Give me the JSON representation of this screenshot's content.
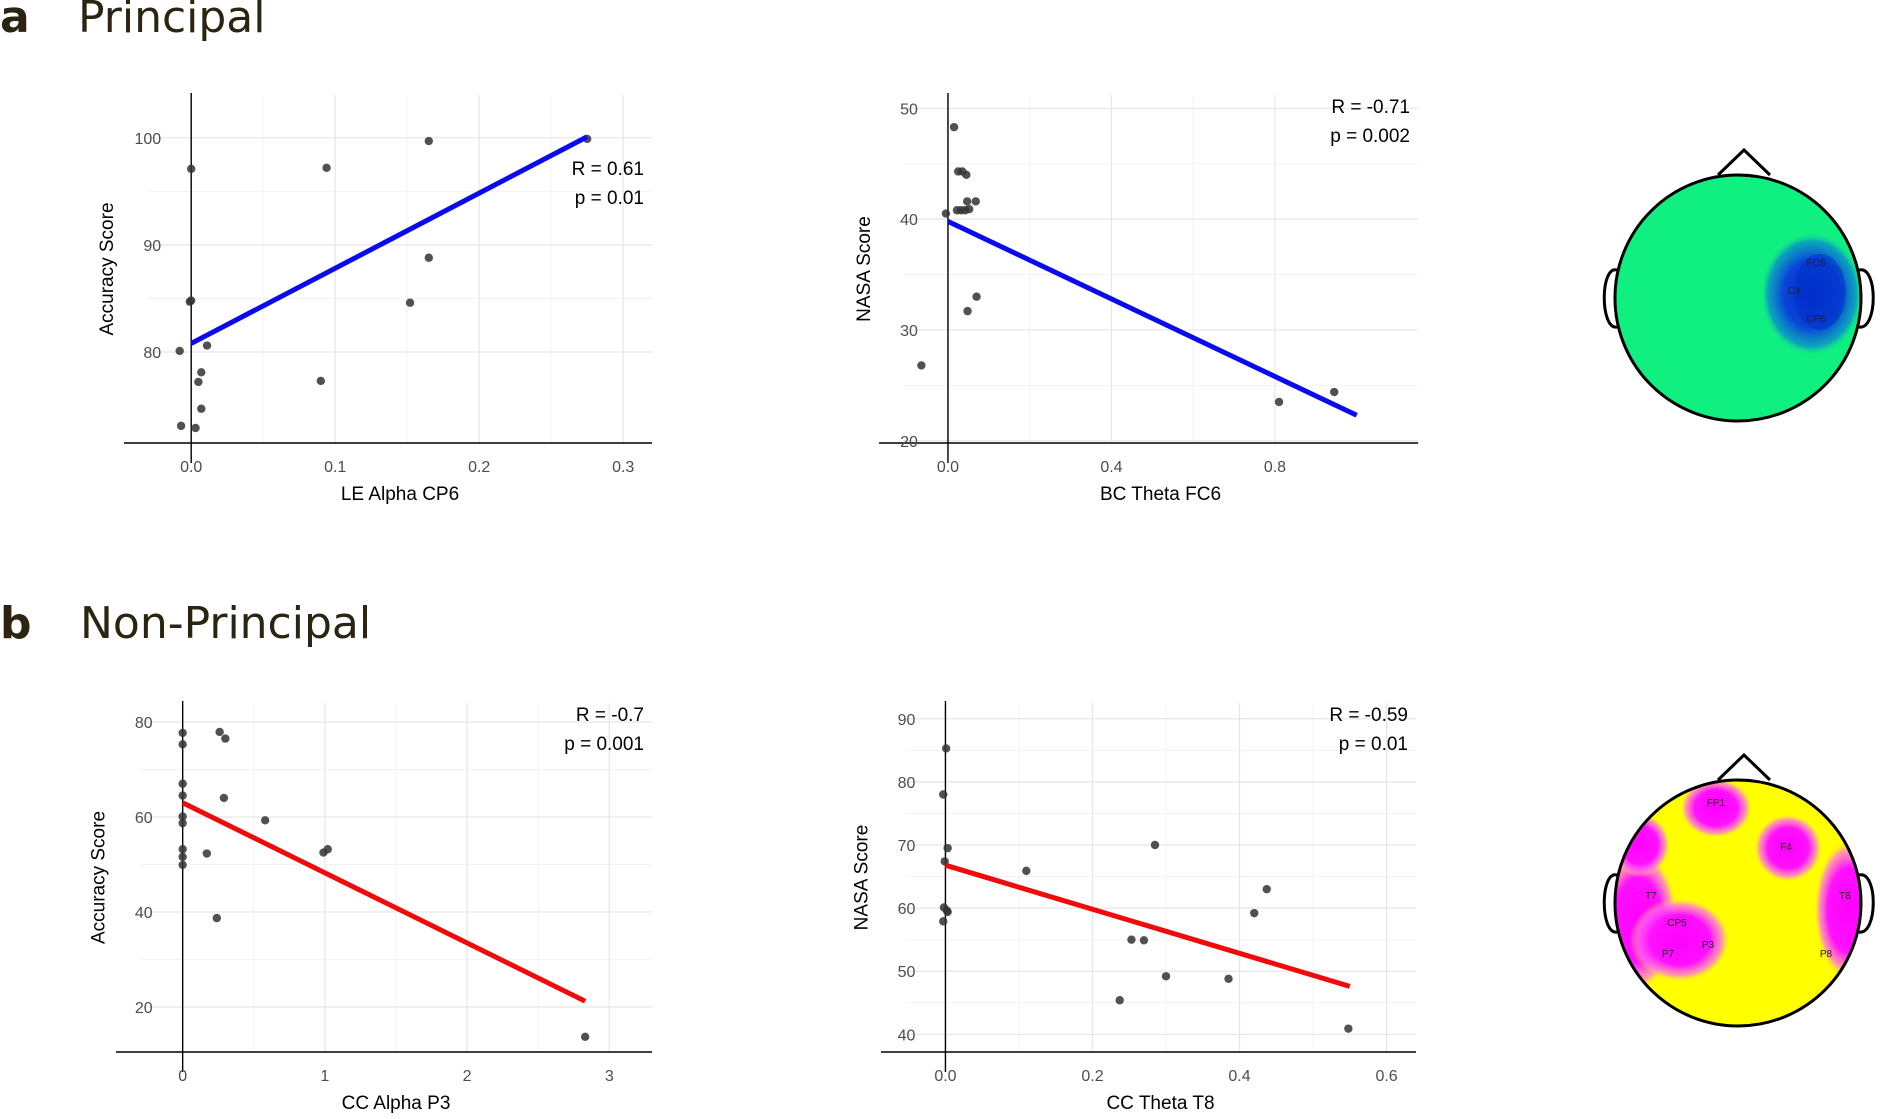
{
  "panels": [
    {
      "letter": "a",
      "title": "Principal"
    },
    {
      "letter": "b",
      "title": "Non-Principal"
    }
  ],
  "colors": {
    "blue_line": "#0a0af0",
    "red_line": "#f00a0a",
    "point": "#333333",
    "green_map": "#10f080",
    "blue_map": "#0033cc",
    "yellow_map": "#ffff00",
    "magenta_map": "#ff00ff"
  },
  "chart_data": [
    {
      "type": "scatter",
      "panel": "a",
      "xlabel": "LE Alpha CP6",
      "ylabel": "Accuracy Score",
      "xlim": [
        -0.03,
        0.32
      ],
      "ylim": [
        71.5,
        104
      ],
      "xticks": [
        0.0,
        0.1,
        0.2,
        0.3
      ],
      "xtick_labels": [
        "0.0",
        "0.1",
        "0.2",
        "0.3"
      ],
      "yticks": [
        80,
        90,
        100
      ],
      "ytick_labels": [
        "80",
        "90",
        "100"
      ],
      "stats": [
        "R = 0.61",
        "p = 0.01"
      ],
      "stats_position": "top-right-lowered",
      "fit": {
        "x": [
          0.0,
          0.275
        ],
        "y": [
          80.8,
          100.1
        ],
        "color": "#0a0af0"
      },
      "points": [
        {
          "x": -0.007,
          "y": 73.1
        },
        {
          "x": 0.003,
          "y": 72.9
        },
        {
          "x": 0.007,
          "y": 74.7
        },
        {
          "x": 0.005,
          "y": 77.2
        },
        {
          "x": 0.007,
          "y": 78.1
        },
        {
          "x": -0.008,
          "y": 80.1
        },
        {
          "x": 0.011,
          "y": 80.6
        },
        {
          "x": -0.001,
          "y": 84.7
        },
        {
          "x": 0.0,
          "y": 84.8
        },
        {
          "x": 0.0,
          "y": 97.1
        },
        {
          "x": 0.09,
          "y": 77.3
        },
        {
          "x": 0.094,
          "y": 97.2
        },
        {
          "x": 0.152,
          "y": 84.6
        },
        {
          "x": 0.165,
          "y": 88.8
        },
        {
          "x": 0.165,
          "y": 99.7
        },
        {
          "x": 0.275,
          "y": 99.9
        }
      ]
    },
    {
      "type": "scatter",
      "panel": "a",
      "xlabel": "BC Theta FC6",
      "ylabel": "NASA Score",
      "xlim": [
        -0.11,
        1.15
      ],
      "ylim": [
        19.8,
        51.2
      ],
      "xticks": [
        0.0,
        0.4,
        0.8
      ],
      "xtick_labels": [
        "0.0",
        "0.4",
        "0.8"
      ],
      "yticks": [
        20,
        30,
        40,
        50
      ],
      "ytick_labels": [
        "20",
        "30",
        "40",
        "50"
      ],
      "stats": [
        "R = -0.71",
        "p = 0.002"
      ],
      "stats_position": "top-right",
      "fit": {
        "x": [
          0.0,
          1.0
        ],
        "y": [
          39.8,
          22.3
        ],
        "color": "#0a0af0"
      },
      "points": [
        {
          "x": -0.065,
          "y": 26.8
        },
        {
          "x": -0.005,
          "y": 40.5
        },
        {
          "x": 0.015,
          "y": 48.3
        },
        {
          "x": 0.025,
          "y": 44.3
        },
        {
          "x": 0.035,
          "y": 44.3
        },
        {
          "x": 0.045,
          "y": 44.0
        },
        {
          "x": 0.022,
          "y": 40.8
        },
        {
          "x": 0.032,
          "y": 40.8
        },
        {
          "x": 0.042,
          "y": 40.8
        },
        {
          "x": 0.052,
          "y": 40.9
        },
        {
          "x": 0.047,
          "y": 41.6
        },
        {
          "x": 0.068,
          "y": 41.6
        },
        {
          "x": 0.048,
          "y": 31.7
        },
        {
          "x": 0.07,
          "y": 33.0
        },
        {
          "x": 0.81,
          "y": 23.5
        },
        {
          "x": 0.945,
          "y": 24.4
        }
      ]
    },
    {
      "type": "scatter",
      "panel": "b",
      "xlabel": "CC Alpha P3",
      "ylabel": "Accuracy Score",
      "xlim": [
        -0.3,
        3.3
      ],
      "ylim": [
        10.5,
        84
      ],
      "xticks": [
        0,
        1,
        2,
        3
      ],
      "xtick_labels": [
        "0",
        "1",
        "2",
        "3"
      ],
      "yticks": [
        20,
        40,
        60,
        80
      ],
      "ytick_labels": [
        "20",
        "40",
        "60",
        "80"
      ],
      "stats": [
        "R = -0.7",
        "p = 0.001"
      ],
      "stats_position": "top-right",
      "fit": {
        "x": [
          0.0,
          2.83
        ],
        "y": [
          63.0,
          21.2
        ],
        "color": "#f00a0a"
      },
      "points": [
        {
          "x": 0.0,
          "y": 77.7
        },
        {
          "x": 0.0,
          "y": 75.3
        },
        {
          "x": 0.0,
          "y": 67.0
        },
        {
          "x": 0.0,
          "y": 64.5
        },
        {
          "x": 0.0,
          "y": 60.1
        },
        {
          "x": 0.0,
          "y": 58.7
        },
        {
          "x": 0.0,
          "y": 53.2
        },
        {
          "x": 0.0,
          "y": 51.6
        },
        {
          "x": 0.0,
          "y": 49.9
        },
        {
          "x": 0.17,
          "y": 52.3
        },
        {
          "x": 0.24,
          "y": 38.7
        },
        {
          "x": 0.26,
          "y": 77.9
        },
        {
          "x": 0.3,
          "y": 76.5
        },
        {
          "x": 0.29,
          "y": 64.0
        },
        {
          "x": 0.58,
          "y": 59.3
        },
        {
          "x": 0.99,
          "y": 52.5
        },
        {
          "x": 1.02,
          "y": 53.2
        },
        {
          "x": 2.83,
          "y": 13.7
        }
      ]
    },
    {
      "type": "scatter",
      "panel": "b",
      "xlabel": "CC Theta T8",
      "ylabel": "NASA Score",
      "xlim": [
        -0.055,
        0.64
      ],
      "ylim": [
        37.2,
        92.5
      ],
      "xticks": [
        0.0,
        0.2,
        0.4,
        0.6
      ],
      "xtick_labels": [
        "0.0",
        "0.2",
        "0.4",
        "0.6"
      ],
      "yticks": [
        40,
        50,
        60,
        70,
        80,
        90
      ],
      "ytick_labels": [
        "40",
        "50",
        "60",
        "70",
        "80",
        "90"
      ],
      "stats": [
        "R = -0.59",
        "p = 0.01"
      ],
      "stats_position": "top-right",
      "fit": {
        "x": [
          0.0,
          0.55
        ],
        "y": [
          66.8,
          47.6
        ],
        "color": "#f00a0a"
      },
      "points": [
        {
          "x": 0.001,
          "y": 85.3
        },
        {
          "x": -0.003,
          "y": 78.0
        },
        {
          "x": 0.003,
          "y": 69.5
        },
        {
          "x": -0.001,
          "y": 67.4
        },
        {
          "x": -0.002,
          "y": 60.1
        },
        {
          "x": 0.002,
          "y": 59.6
        },
        {
          "x": 0.003,
          "y": 59.4
        },
        {
          "x": -0.003,
          "y": 57.9
        },
        {
          "x": 0.11,
          "y": 65.9
        },
        {
          "x": 0.237,
          "y": 45.4
        },
        {
          "x": 0.253,
          "y": 55.0
        },
        {
          "x": 0.27,
          "y": 54.9
        },
        {
          "x": 0.285,
          "y": 70.0
        },
        {
          "x": 0.3,
          "y": 49.2
        },
        {
          "x": 0.385,
          "y": 48.8
        },
        {
          "x": 0.42,
          "y": 59.2
        },
        {
          "x": 0.437,
          "y": 63.0
        },
        {
          "x": 0.548,
          "y": 40.9
        }
      ]
    }
  ],
  "topomaps": [
    {
      "panel": "a",
      "electrodes": [
        "FC6",
        "C4",
        "CP6"
      ]
    },
    {
      "panel": "b",
      "electrodes": [
        "FP1",
        "F4",
        "T7",
        "T8",
        "CP5",
        "P3",
        "P7",
        "P8"
      ]
    }
  ]
}
